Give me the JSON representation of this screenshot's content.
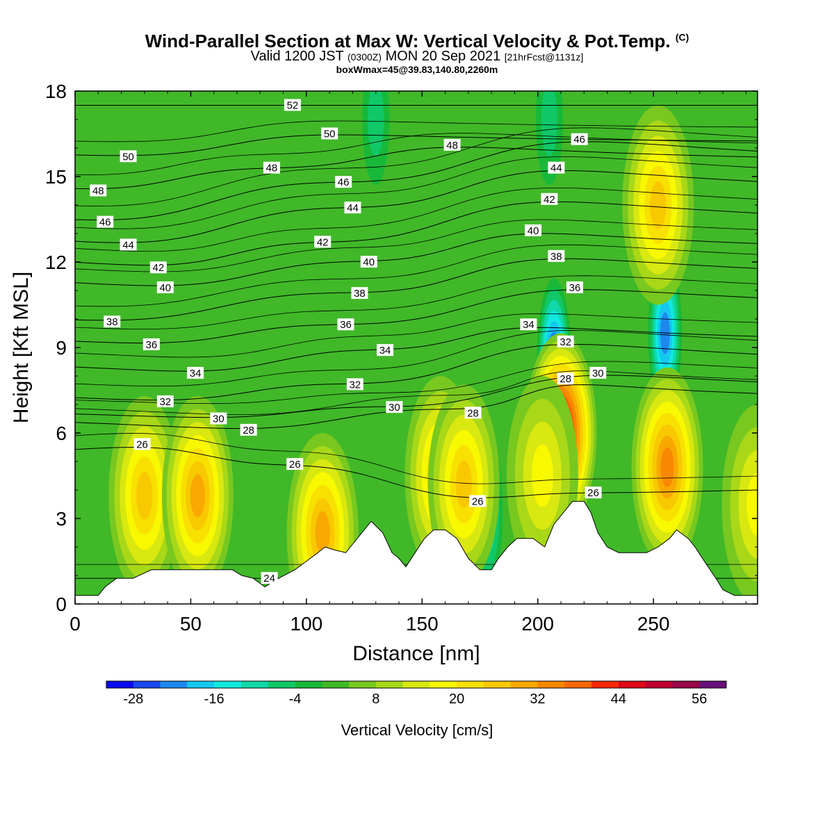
{
  "title": {
    "main": "Wind-Parallel Section at Max W: Vertical Velocity & Pot.Temp.",
    "copyright": "(C)",
    "valid_prefix": "Valid 1200 JST",
    "valid_utc": "(0300Z)",
    "valid_date": "MON 20 Sep 2021",
    "forecast": "[21hrFcst@1131z]",
    "boxwmax": "boxWmax=45@39.83,140.80,2260m"
  },
  "chart_data": {
    "type": "contour",
    "xlabel": "Distance [nm]",
    "ylabel": "Height [Kft MSL]",
    "xlim": [
      0,
      295
    ],
    "ylim": [
      0,
      18
    ],
    "xticks": [
      0,
      50,
      100,
      150,
      200,
      250
    ],
    "yticks": [
      0,
      3,
      6,
      9,
      12,
      15,
      18
    ],
    "colorbar": {
      "title": "Vertical Velocity [cm/s]",
      "tick_labels": [
        -28,
        -16,
        -4,
        8,
        20,
        32,
        44,
        56
      ],
      "levels": [
        -32,
        -28,
        -24,
        -20,
        -16,
        -12,
        -8,
        -4,
        0,
        4,
        8,
        12,
        16,
        20,
        24,
        28,
        32,
        36,
        40,
        44,
        48,
        52,
        56,
        60
      ],
      "colors": [
        "#0a0aee",
        "#1a48f0",
        "#1e88ee",
        "#14c8f0",
        "#10e8e0",
        "#10d8a8",
        "#10c868",
        "#18b838",
        "#40b828",
        "#78c820",
        "#a8d818",
        "#d8e810",
        "#f8f800",
        "#f8e000",
        "#f8c800",
        "#f8a800",
        "#f88800",
        "#f86808",
        "#f82808",
        "#e00818",
        "#c00030",
        "#980848",
        "#681078"
      ]
    },
    "terrain_kft": [
      [
        0,
        0.3
      ],
      [
        5,
        0.3
      ],
      [
        10,
        0.3
      ],
      [
        13,
        0.6
      ],
      [
        18,
        0.9
      ],
      [
        25,
        0.9
      ],
      [
        33,
        1.2
      ],
      [
        60,
        1.2
      ],
      [
        68,
        1.2
      ],
      [
        72,
        1.0
      ],
      [
        77,
        0.9
      ],
      [
        82,
        0.6
      ],
      [
        88,
        0.9
      ],
      [
        95,
        1.2
      ],
      [
        100,
        1.5
      ],
      [
        105,
        1.8
      ],
      [
        108,
        2.0
      ],
      [
        112,
        1.9
      ],
      [
        117,
        1.8
      ],
      [
        122,
        2.3
      ],
      [
        128,
        2.9
      ],
      [
        133,
        2.5
      ],
      [
        137,
        1.8
      ],
      [
        140,
        1.6
      ],
      [
        143,
        1.3
      ],
      [
        147,
        1.8
      ],
      [
        151,
        2.3
      ],
      [
        155,
        2.6
      ],
      [
        160,
        2.6
      ],
      [
        165,
        2.3
      ],
      [
        170,
        1.6
      ],
      [
        175,
        1.2
      ],
      [
        180,
        1.2
      ],
      [
        183,
        1.6
      ],
      [
        187,
        2.0
      ],
      [
        191,
        2.3
      ],
      [
        198,
        2.3
      ],
      [
        203,
        2.0
      ],
      [
        207,
        2.8
      ],
      [
        211,
        3.2
      ],
      [
        215,
        3.6
      ],
      [
        220,
        3.6
      ],
      [
        223,
        3.2
      ],
      [
        226,
        2.5
      ],
      [
        230,
        2.0
      ],
      [
        235,
        1.8
      ],
      [
        240,
        1.8
      ],
      [
        247,
        1.8
      ],
      [
        252,
        2.0
      ],
      [
        257,
        2.3
      ],
      [
        260,
        2.6
      ],
      [
        265,
        2.3
      ],
      [
        268,
        2.0
      ],
      [
        272,
        1.5
      ],
      [
        277,
        0.9
      ],
      [
        280,
        0.5
      ],
      [
        285,
        0.3
      ],
      [
        290,
        0.3
      ],
      [
        295,
        0.3
      ]
    ],
    "updraft_cells": [
      {
        "x": 30,
        "z": 3.8,
        "w": 18
      },
      {
        "x": 53,
        "z": 3.8,
        "w": 24
      },
      {
        "x": 107,
        "z": 2.5,
        "w": 24
      },
      {
        "x": 158,
        "z": 4.5,
        "w": 20
      },
      {
        "x": 168,
        "z": 4.2,
        "w": 20
      },
      {
        "x": 210,
        "z": 6.0,
        "w": 45
      },
      {
        "x": 256,
        "z": 4.8,
        "w": 28
      },
      {
        "x": 252,
        "z": 14.0,
        "w": 20
      },
      {
        "x": 202,
        "z": 4.5,
        "w": 12
      },
      {
        "x": 295,
        "z": 3.5,
        "w": 12
      }
    ],
    "downdraft_cells": [
      {
        "x": 207,
        "z": 8.5,
        "w": -28
      },
      {
        "x": 255,
        "z": 9.5,
        "w": -24
      },
      {
        "x": 178,
        "z": 3.2,
        "w": -16
      },
      {
        "x": 130,
        "z": 17.0,
        "w": -8
      },
      {
        "x": 205,
        "z": 17.0,
        "w": -8
      }
    ],
    "theta_levels": [
      24,
      26,
      28,
      30,
      32,
      34,
      36,
      38,
      40,
      42,
      44,
      46,
      48,
      50,
      52
    ],
    "theta_labels": [
      {
        "x": 84,
        "z": 0.9,
        "v": "24"
      },
      {
        "x": 29,
        "z": 5.6,
        "v": "26"
      },
      {
        "x": 95,
        "z": 4.9,
        "v": "26"
      },
      {
        "x": 174,
        "z": 3.6,
        "v": "26"
      },
      {
        "x": 224,
        "z": 3.9,
        "v": "26"
      },
      {
        "x": 75,
        "z": 6.1,
        "v": "28"
      },
      {
        "x": 172,
        "z": 6.7,
        "v": "28"
      },
      {
        "x": 212,
        "z": 7.9,
        "v": "28"
      },
      {
        "x": 62,
        "z": 6.5,
        "v": "30"
      },
      {
        "x": 138,
        "z": 6.9,
        "v": "30"
      },
      {
        "x": 226,
        "z": 8.1,
        "v": "30"
      },
      {
        "x": 39,
        "z": 7.1,
        "v": "32"
      },
      {
        "x": 121,
        "z": 7.7,
        "v": "32"
      },
      {
        "x": 212,
        "z": 9.2,
        "v": "32"
      },
      {
        "x": 52,
        "z": 8.1,
        "v": "34"
      },
      {
        "x": 134,
        "z": 8.9,
        "v": "34"
      },
      {
        "x": 196,
        "z": 9.8,
        "v": "34"
      },
      {
        "x": 33,
        "z": 9.1,
        "v": "36"
      },
      {
        "x": 117,
        "z": 9.8,
        "v": "36"
      },
      {
        "x": 216,
        "z": 11.1,
        "v": "36"
      },
      {
        "x": 16,
        "z": 9.9,
        "v": "38"
      },
      {
        "x": 123,
        "z": 10.9,
        "v": "38"
      },
      {
        "x": 208,
        "z": 12.2,
        "v": "38"
      },
      {
        "x": 39,
        "z": 11.1,
        "v": "40"
      },
      {
        "x": 127,
        "z": 12.0,
        "v": "40"
      },
      {
        "x": 198,
        "z": 13.1,
        "v": "40"
      },
      {
        "x": 36,
        "z": 11.8,
        "v": "42"
      },
      {
        "x": 107,
        "z": 12.7,
        "v": "42"
      },
      {
        "x": 205,
        "z": 14.2,
        "v": "42"
      },
      {
        "x": 23,
        "z": 12.6,
        "v": "44"
      },
      {
        "x": 120,
        "z": 13.9,
        "v": "44"
      },
      {
        "x": 208,
        "z": 15.3,
        "v": "44"
      },
      {
        "x": 13,
        "z": 13.4,
        "v": "46"
      },
      {
        "x": 116,
        "z": 14.8,
        "v": "46"
      },
      {
        "x": 218,
        "z": 16.3,
        "v": "46"
      },
      {
        "x": 10,
        "z": 14.5,
        "v": "48"
      },
      {
        "x": 85,
        "z": 15.3,
        "v": "48"
      },
      {
        "x": 163,
        "z": 16.1,
        "v": "48"
      },
      {
        "x": 23,
        "z": 15.7,
        "v": "50"
      },
      {
        "x": 110,
        "z": 16.5,
        "v": "50"
      },
      {
        "x": 94,
        "z": 17.5,
        "v": "52"
      }
    ]
  }
}
